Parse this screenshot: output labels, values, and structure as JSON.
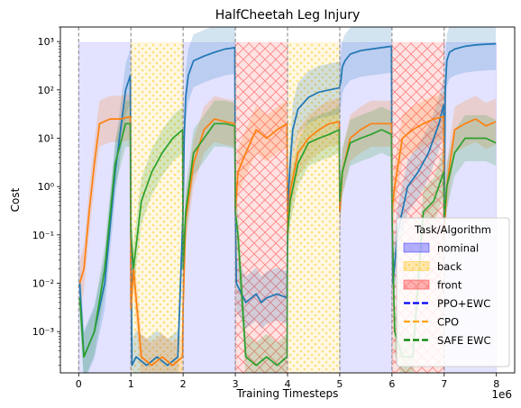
{
  "chart_data": {
    "type": "line",
    "title": "HalfCheetah Leg Injury",
    "xlabel": "Training Timesteps",
    "ylabel": "Cost",
    "x_offset_label": "1e6",
    "xlim": [
      -0.35,
      8.35
    ],
    "ylim": [
      0.00014,
      2000
    ],
    "yscale": "log",
    "x_ticks": [
      0,
      1,
      2,
      3,
      4,
      5,
      6,
      7,
      8
    ],
    "x_tick_labels": [
      "0",
      "1",
      "2",
      "3",
      "4",
      "5",
      "6",
      "7",
      "8"
    ],
    "y_ticks": [
      0.001,
      0.01,
      0.1,
      1,
      10,
      100,
      1000
    ],
    "y_tick_labels": [
      "10⁻³",
      "10⁻²",
      "10⁻¹",
      "10⁰",
      "10¹",
      "10²",
      "10³"
    ],
    "task_boundaries": [
      0,
      1,
      2,
      3,
      4,
      5,
      6,
      7
    ],
    "tasks": [
      {
        "name": "nominal",
        "color": "#0000ff",
        "spans": [
          [
            0,
            1
          ],
          [
            2,
            3
          ],
          [
            5,
            6
          ],
          [
            7,
            8
          ]
        ],
        "top": 950
      },
      {
        "name": "back",
        "color": "#ffbf00",
        "spans": [
          [
            1,
            2
          ],
          [
            4,
            5
          ]
        ],
        "top": 950
      },
      {
        "name": "front",
        "color": "#ff0000",
        "spans": [
          [
            3,
            4
          ],
          [
            6,
            7
          ]
        ],
        "top": 950
      }
    ],
    "legend": {
      "title": "Task/Algorithm",
      "placement": "lower-right",
      "entries": [
        {
          "label": "nominal",
          "kind": "patch",
          "color": "#0000ff"
        },
        {
          "label": "back",
          "kind": "patch",
          "color": "#ffbf00"
        },
        {
          "label": "front",
          "kind": "patch",
          "color": "#ff0000"
        },
        {
          "label": "PPO+EWC",
          "kind": "dash",
          "color": "#0000ff"
        },
        {
          "label": "CPO",
          "kind": "dash",
          "color": "#ffa500"
        },
        {
          "label": "SAFE EWC",
          "kind": "dash",
          "color": "#008000"
        }
      ]
    },
    "series": [
      {
        "name": "PPO+EWC",
        "color": "#1f77b4",
        "x": [
          0.02,
          0.1,
          0.3,
          0.5,
          0.7,
          0.9,
          0.99,
          1.0,
          1.02,
          1.1,
          1.3,
          1.5,
          1.7,
          1.9,
          2.0,
          2.02,
          2.05,
          2.1,
          2.2,
          2.4,
          2.6,
          2.8,
          2.99,
          3.0,
          3.02,
          3.2,
          3.4,
          3.5,
          3.6,
          3.8,
          3.99,
          4.0,
          4.02,
          4.05,
          4.1,
          4.2,
          4.4,
          4.6,
          4.8,
          4.99,
          5.0,
          5.02,
          5.05,
          5.1,
          5.2,
          5.4,
          5.6,
          5.8,
          5.99,
          6.0,
          6.02,
          6.1,
          6.3,
          6.5,
          6.7,
          6.9,
          6.99,
          7.0,
          7.02,
          7.05,
          7.1,
          7.2,
          7.4,
          7.6,
          7.8,
          7.99
        ],
        "y": [
          0.01,
          0.0003,
          0.001,
          0.01,
          2,
          100,
          200,
          0.2,
          0.0002,
          0.0003,
          0.0002,
          0.0003,
          0.0002,
          0.0003,
          0.3,
          10,
          70,
          200,
          400,
          500,
          600,
          700,
          750,
          0.3,
          0.01,
          0.004,
          0.006,
          0.004,
          0.005,
          0.006,
          0.005,
          0.1,
          0.9,
          3,
          15,
          40,
          70,
          90,
          100,
          110,
          120,
          150,
          300,
          400,
          550,
          650,
          700,
          750,
          800,
          0.3,
          0.01,
          0.1,
          1,
          2,
          5,
          20,
          50,
          0.2,
          100,
          400,
          600,
          700,
          800,
          850,
          880,
          900
        ],
        "band_factor": 3.5
      },
      {
        "name": "CPO",
        "color": "#ff7f0e",
        "x": [
          0.02,
          0.1,
          0.2,
          0.3,
          0.4,
          0.6,
          0.8,
          0.99,
          1.0,
          1.05,
          1.2,
          1.4,
          1.6,
          1.8,
          1.99,
          2.0,
          2.05,
          2.2,
          2.4,
          2.6,
          2.8,
          2.99,
          3.0,
          3.05,
          3.2,
          3.4,
          3.6,
          3.8,
          3.99,
          4.0,
          4.05,
          4.2,
          4.4,
          4.6,
          4.8,
          4.99,
          5.0,
          5.05,
          5.2,
          5.4,
          5.6,
          5.8,
          5.99,
          6.0,
          6.05,
          6.2,
          6.4,
          6.6,
          6.8,
          6.99,
          7.0,
          7.05,
          7.2,
          7.4,
          7.6,
          7.8,
          7.99
        ],
        "y": [
          0.01,
          0.02,
          0.3,
          3,
          20,
          25,
          25,
          28,
          0.003,
          0.02,
          0.0003,
          0.0002,
          0.0003,
          0.0002,
          0.0003,
          0.003,
          0.2,
          3,
          15,
          25,
          22,
          20,
          0.3,
          2,
          5,
          15,
          10,
          15,
          20,
          0.1,
          0.8,
          5,
          10,
          15,
          20,
          22,
          0.3,
          2,
          10,
          15,
          20,
          20,
          20,
          0.3,
          1,
          10,
          15,
          20,
          25,
          28,
          0.1,
          1,
          15,
          20,
          25,
          18,
          22
        ],
        "band_factor": 3
      },
      {
        "name": "SAFE EWC",
        "color": "#2ca02c",
        "x": [
          0.02,
          0.1,
          0.3,
          0.5,
          0.7,
          0.9,
          0.99,
          1.0,
          1.05,
          1.2,
          1.4,
          1.6,
          1.8,
          1.99,
          2.0,
          2.05,
          2.2,
          2.4,
          2.6,
          2.8,
          2.99,
          3.0,
          3.05,
          3.2,
          3.4,
          3.6,
          3.8,
          3.99,
          4.0,
          4.05,
          4.2,
          4.4,
          4.6,
          4.8,
          4.99,
          5.0,
          5.05,
          5.2,
          5.4,
          5.6,
          5.8,
          5.99,
          6.0,
          6.05,
          6.2,
          6.4,
          6.6,
          6.8,
          6.99,
          7.0,
          7.05,
          7.2,
          7.4,
          7.6,
          7.8,
          7.99
        ],
        "y": [
          0.005,
          0.0003,
          0.001,
          0.02,
          3,
          20,
          20,
          0.1,
          0.02,
          0.5,
          2,
          5,
          10,
          15,
          0.02,
          0.3,
          5,
          10,
          20,
          20,
          18,
          0.3,
          0.1,
          0.0003,
          0.0002,
          0.0003,
          0.0002,
          0.0003,
          0.1,
          0.5,
          3,
          8,
          10,
          12,
          15,
          0.5,
          2,
          8,
          10,
          12,
          15,
          12,
          0.3,
          0.001,
          0.0003,
          0.0003,
          0.3,
          0.5,
          2,
          0.2,
          1,
          5,
          10,
          10,
          10,
          8
        ],
        "band_factor": 3
      }
    ]
  }
}
